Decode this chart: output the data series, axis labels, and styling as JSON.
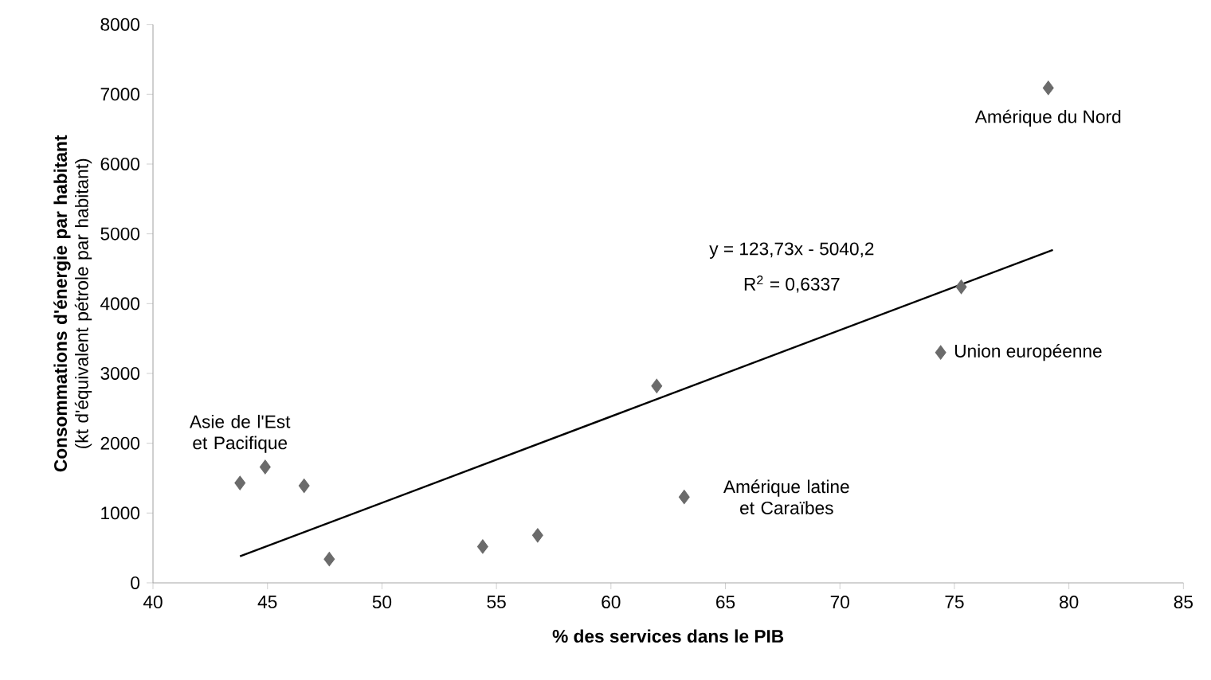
{
  "chart_data": {
    "type": "scatter",
    "xlabel": "% des services dans le PIB",
    "ylabel": "**Consommations d'énergie par habitant** (kt d'équivalent pétrole par habitant)",
    "xlim": [
      40,
      85
    ],
    "xticks": [
      40,
      45,
      50,
      55,
      60,
      65,
      70,
      75,
      80,
      85
    ],
    "ylim": [
      0,
      8000
    ],
    "yticks": [
      0,
      1000,
      2000,
      3000,
      4000,
      5000,
      6000,
      7000,
      8000
    ],
    "grid": false,
    "marker": "diamond",
    "series": [
      {
        "color": "#6b6b6b",
        "x": [
          43.8,
          44.9,
          46.6,
          47.7,
          54.4,
          56.8,
          62.0,
          63.2,
          74.4,
          75.3,
          79.1
        ],
        "values": [
          1430,
          1660,
          1390,
          340,
          520,
          680,
          2820,
          1230,
          3300,
          4240,
          7090
        ]
      },
      {
        "type": "line",
        "color": "#000000",
        "marker": "none",
        "x": [
          43.8,
          79.3
        ],
        "values": [
          380,
          4770
        ]
      }
    ],
    "annotations": [
      {
        "text": "Asie de l'Est et Pacifique",
        "x": 43.8,
        "y": 1430
      },
      {
        "text": "Amérique latine et Caraïbes",
        "x": 63.2,
        "y": 1230
      },
      {
        "text": "Union européenne",
        "x": 74.4,
        "y": 3300
      },
      {
        "text": "Amérique du Nord",
        "x": 79.1,
        "y": 7090
      },
      "y = 123,73x - 5040,2",
      "R$^{2}$ = 0,6337"
    ]
  }
}
